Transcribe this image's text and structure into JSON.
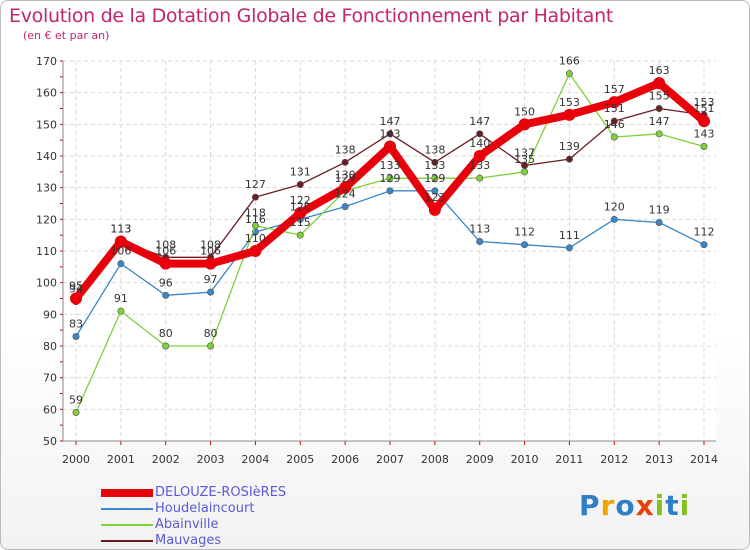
{
  "chart_data": {
    "type": "line",
    "title": "Evolution de la Dotation Globale de Fonctionnement par Habitant",
    "subtitle": "(en € et par an)",
    "categories": [
      "2000",
      "2001",
      "2002",
      "2003",
      "2004",
      "2005",
      "2006",
      "2007",
      "2008",
      "2009",
      "2010",
      "2011",
      "2012",
      "2013",
      "2014"
    ],
    "ylim": [
      50,
      170
    ],
    "yticks": [
      50,
      60,
      70,
      80,
      90,
      100,
      110,
      120,
      130,
      140,
      150,
      160,
      170
    ],
    "grid": true,
    "series": [
      {
        "name": "DELOUZE-ROSIèRES",
        "color": "#e8000b",
        "values": [
          95,
          113,
          106,
          106,
          110,
          122,
          130,
          143,
          123,
          140,
          150,
          153,
          157,
          163,
          151
        ]
      },
      {
        "name": "Houdelaincourt",
        "color": "#3a86c8",
        "values": [
          83,
          106,
          96,
          97,
          116,
          120,
          124,
          129,
          129,
          113,
          112,
          111,
          120,
          119,
          112
        ]
      },
      {
        "name": "Abainville",
        "color": "#7fd13a",
        "values": [
          59,
          91,
          80,
          80,
          118,
          115,
          129,
          133,
          133,
          133,
          135,
          166,
          146,
          147,
          143
        ]
      },
      {
        "name": "Mauvages",
        "color": "#6b1e22",
        "values": [
          94,
          113,
          108,
          108,
          127,
          131,
          138,
          147,
          138,
          147,
          137,
          139,
          151,
          155,
          153
        ]
      }
    ]
  },
  "legend": {
    "items": [
      "DELOUZE-ROSIèRES",
      "Houdelaincourt",
      "Abainville",
      "Mauvages"
    ]
  },
  "logo": {
    "text": "Proxiti"
  }
}
